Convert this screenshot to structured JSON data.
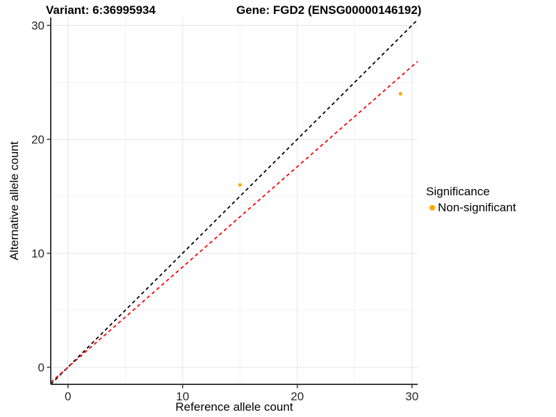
{
  "header": {
    "variant_title": "Variant: 6:36995934",
    "gene_title": "Gene: FGD2 (ENSG00000146192)"
  },
  "chart_data": {
    "type": "scatter",
    "title": "Variant: 6:36995934 — Gene: FGD2 (ENSG00000146192)",
    "xlabel": "Reference allele count",
    "ylabel": "Alternative allele count",
    "xlim": [
      -1.5,
      30.5
    ],
    "ylim": [
      -1.5,
      30.7
    ],
    "x_major_ticks": [
      0,
      10,
      20,
      30
    ],
    "x_minor_ticks": [
      5,
      15,
      25
    ],
    "y_major_ticks": [
      0,
      10,
      20,
      30
    ],
    "y_minor_ticks": [
      5,
      15,
      25
    ],
    "grid": true,
    "legend_position": "right",
    "series": [
      {
        "name": "Non-significant",
        "color": "#FFA500",
        "points": [
          {
            "x": 15,
            "y": 16
          },
          {
            "x": 29,
            "y": 24
          }
        ]
      }
    ],
    "lines": [
      {
        "name": "identity-line",
        "slope": 1.0,
        "intercept": 0,
        "color": "#000000",
        "style": "dashed"
      },
      {
        "name": "fit-line",
        "slope": 0.88,
        "intercept": 0,
        "color": "#FF0000",
        "style": "dashed"
      }
    ]
  },
  "legend": {
    "title": "Significance",
    "items": [
      {
        "label": "Non-significant",
        "color": "#FFA500"
      }
    ]
  },
  "style": {
    "grid_major_color": "#E4E4E4",
    "grid_minor_color": "#F2F2F2",
    "axis_color": "#3c3c3c",
    "tick_label_color": "#262626",
    "point_radius": 2.6
  }
}
